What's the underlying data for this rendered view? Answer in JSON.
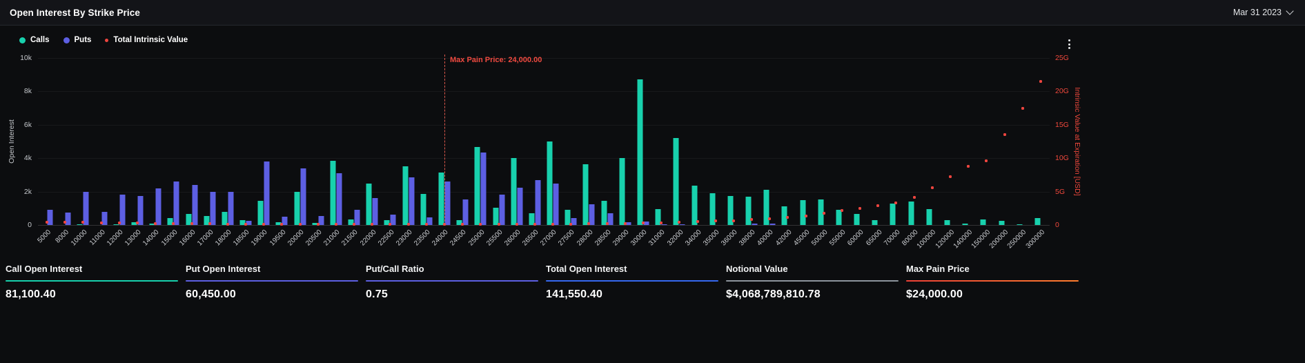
{
  "header": {
    "title": "Open Interest By Strike Price",
    "date_selector": "Mar 31 2023"
  },
  "chart_data": {
    "type": "bar+scatter",
    "legend_position": "top-left",
    "grid": "horizontal-faint",
    "categories": [
      "5000",
      "8000",
      "10000",
      "11000",
      "12000",
      "13000",
      "14000",
      "15000",
      "16000",
      "17000",
      "18000",
      "18500",
      "19000",
      "19500",
      "20000",
      "20500",
      "21000",
      "21500",
      "22000",
      "22500",
      "23000",
      "23500",
      "24000",
      "24500",
      "25000",
      "25500",
      "26000",
      "26500",
      "27000",
      "27500",
      "28000",
      "28500",
      "29000",
      "30000",
      "31000",
      "32000",
      "34000",
      "35000",
      "36000",
      "38000",
      "40000",
      "42000",
      "45000",
      "50000",
      "55000",
      "60000",
      "65000",
      "70000",
      "80000",
      "100000",
      "120000",
      "140000",
      "150000",
      "200000",
      "250000",
      "300000"
    ],
    "left_axis": {
      "title": "Open Interest",
      "min": 0,
      "max": 10000,
      "ticks": [
        "0",
        "2k",
        "4k",
        "6k",
        "8k",
        "10k"
      ]
    },
    "right_axis": {
      "title": "Intrinsic Value at Expiration [USD]",
      "min": 0,
      "max": 25,
      "unit": "G (billions USD)",
      "ticks": [
        "0",
        "5G",
        "10G",
        "15G",
        "20G",
        "25G"
      ]
    },
    "series": [
      {
        "name": "Calls",
        "type": "bar",
        "axis": "left",
        "color": "#18d1ad",
        "legend_marker": "circle",
        "values": [
          0,
          0,
          60,
          0,
          60,
          150,
          100,
          400,
          650,
          550,
          800,
          300,
          1450,
          150,
          2000,
          120,
          3850,
          350,
          2500,
          300,
          3500,
          1850,
          3150,
          300,
          4650,
          1050,
          4000,
          700,
          5000,
          900,
          3650,
          1450,
          4000,
          8700,
          950,
          5200,
          2350,
          1900,
          1750,
          1700,
          2100,
          1100,
          1500,
          1550,
          900,
          650,
          300,
          1300,
          1400,
          950,
          300,
          100,
          350,
          250,
          60,
          400
        ]
      },
      {
        "name": "Puts",
        "type": "bar",
        "axis": "left",
        "color": "#5d5fe3",
        "legend_marker": "circle",
        "values": [
          900,
          750,
          2000,
          800,
          1800,
          1750,
          2200,
          2600,
          2400,
          2000,
          2000,
          250,
          3800,
          500,
          3400,
          550,
          3100,
          900,
          1600,
          600,
          2850,
          450,
          2600,
          1550,
          4350,
          1800,
          2250,
          2700,
          2500,
          400,
          1250,
          700,
          150,
          200,
          50,
          50,
          0,
          0,
          0,
          80,
          80,
          0,
          0,
          0,
          0,
          0,
          0,
          0,
          0,
          0,
          0,
          0,
          0,
          0,
          0,
          0
        ]
      },
      {
        "name": "Total Intrinsic Value",
        "type": "scatter",
        "axis": "right",
        "color": "#ef453f",
        "legend_marker": "dot",
        "unit": "G",
        "values": [
          0.45,
          0.4,
          0.38,
          0.33,
          0.3,
          0.28,
          0.25,
          0.22,
          0.2,
          0.17,
          0.15,
          0.14,
          0.13,
          0.12,
          0.1,
          0.09,
          0.08,
          0.07,
          0.06,
          0.05,
          0.04,
          0.03,
          0.02,
          0.03,
          0.05,
          0.06,
          0.08,
          0.1,
          0.12,
          0.15,
          0.17,
          0.2,
          0.22,
          0.28,
          0.33,
          0.4,
          0.52,
          0.6,
          0.67,
          0.82,
          0.97,
          1.12,
          1.35,
          1.74,
          2.12,
          2.5,
          2.9,
          3.3,
          4.1,
          5.6,
          7.2,
          8.8,
          9.6,
          13.5,
          17.5,
          21.5
        ]
      }
    ],
    "annotations": {
      "max_pain": {
        "category": "24000",
        "label": "Max Pain Price: 24,000.00",
        "color": "#f04a40"
      }
    }
  },
  "stats": [
    {
      "label": "Call Open Interest",
      "value": "81,100.40",
      "accent": "#18d1ad"
    },
    {
      "label": "Put Open Interest",
      "value": "60,450.00",
      "accent": "#5d5fe3"
    },
    {
      "label": "Put/Call Ratio",
      "value": "0.75",
      "accent": "#5d5fe3"
    },
    {
      "label": "Total Open Interest",
      "value": "141,550.40",
      "accent": "#3668f0"
    },
    {
      "label": "Notional Value",
      "value": "$4,068,789,810.78",
      "accent": "#8e959d"
    },
    {
      "label": "Max Pain Price",
      "value": "$24,000.00",
      "accent": "#ee4136",
      "accent2": "#ff7d2e"
    }
  ]
}
